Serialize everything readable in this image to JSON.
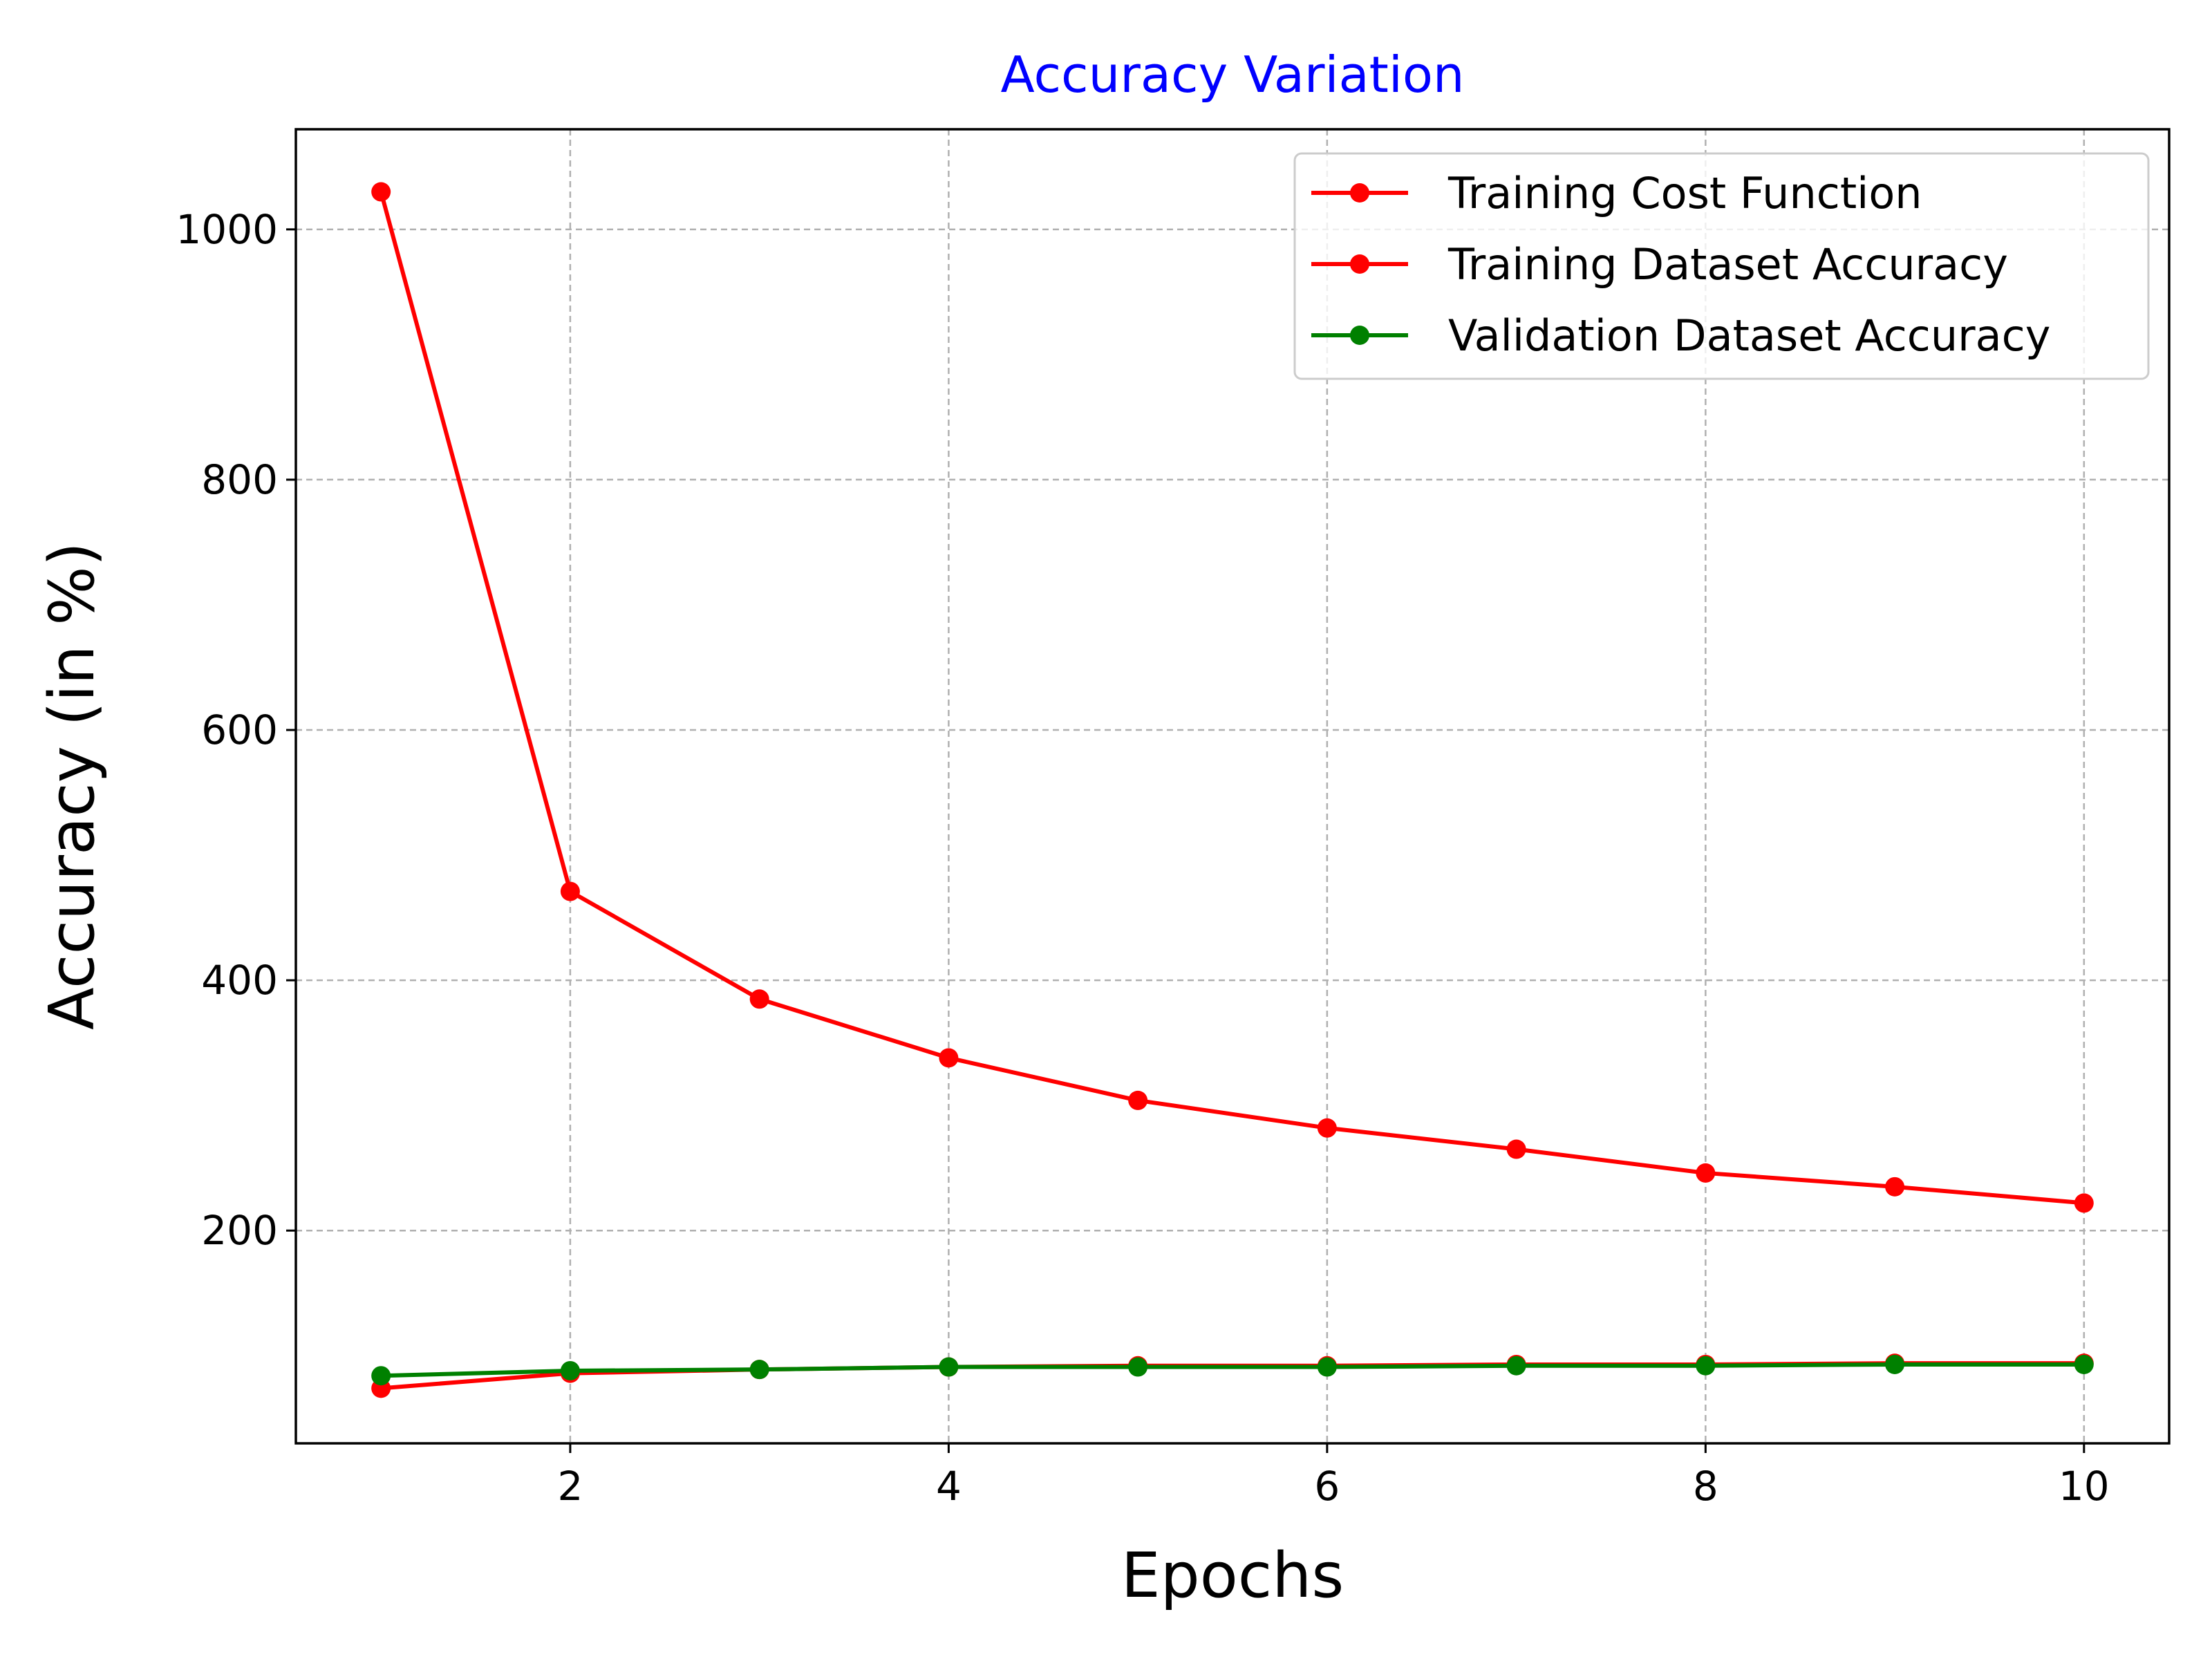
{
  "chart_data": {
    "type": "line",
    "title": "Accuracy Variation",
    "title_color": "#0000ff",
    "xlabel": "Epochs",
    "ylabel": "Accuracy (in %)",
    "x": [
      1,
      2,
      3,
      4,
      5,
      6,
      7,
      8,
      9,
      10
    ],
    "xlim": [
      0.55,
      10.45
    ],
    "ylim": [
      30,
      1080
    ],
    "xticks": [
      2,
      4,
      6,
      8,
      10
    ],
    "yticks": [
      200,
      400,
      600,
      800,
      1000
    ],
    "grid": true,
    "legend_position": "top-right",
    "series": [
      {
        "name": "Training Cost Function",
        "color": "#ff0000",
        "values": [
          1030,
          471,
          385,
          338,
          304,
          282,
          265,
          246,
          235,
          222
        ]
      },
      {
        "name": "Training Dataset Accuracy",
        "color": "#ff0000",
        "values": [
          74,
          86,
          89,
          91,
          92,
          92,
          93,
          93,
          94,
          94
        ]
      },
      {
        "name": "Validation Dataset Accuracy",
        "color": "#008000",
        "values": [
          84,
          88,
          89,
          91,
          91,
          91,
          92,
          92,
          93,
          93
        ]
      }
    ]
  }
}
